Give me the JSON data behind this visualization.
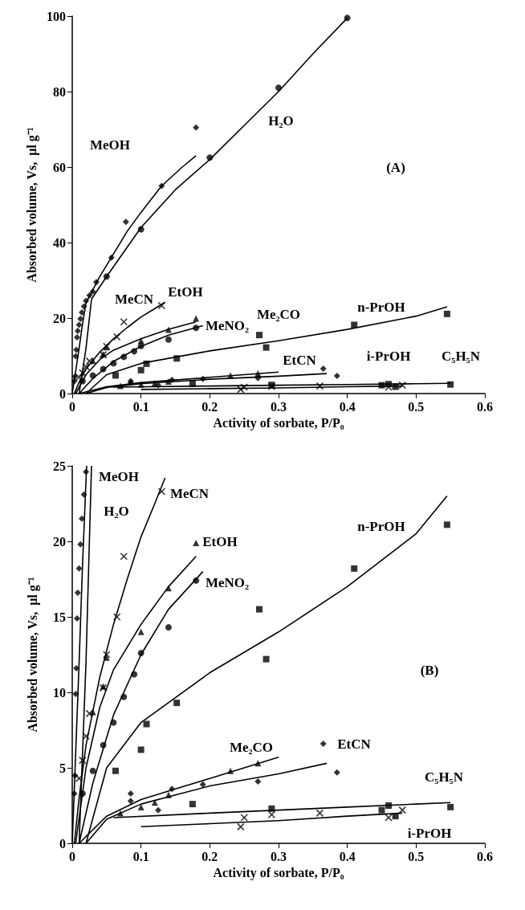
{
  "chart_data": [
    {
      "type": "scatter",
      "xlabel": "Activity of sorbate, P/P₀",
      "ylabel": "Absorbed volume, Vs,  μl g⁻¹",
      "xlim": [
        0,
        0.6
      ],
      "xticks": [
        0,
        0.1,
        0.2,
        0.3,
        0.4,
        0.5,
        0.6
      ],
      "ylim": [
        0,
        100
      ],
      "yticks": [
        0,
        20,
        40,
        60,
        80,
        100
      ],
      "series": [
        {
          "marker": "diamond",
          "color": "#000000",
          "x": [
            0.003,
            0.004,
            0.005,
            0.006,
            0.007,
            0.008,
            0.01,
            0.012,
            0.014,
            0.017,
            0.02,
            0.025,
            0.03,
            0.035,
            0.057,
            0.078,
            0.13,
            0.18
          ],
          "values": [
            3.3,
            4.5,
            9.9,
            11.6,
            14.9,
            16.6,
            18.2,
            19.8,
            21.5,
            23.1,
            24.6,
            26,
            27,
            29.5,
            36,
            45.5,
            55,
            70.5
          ]
        },
        {
          "type": "line",
          "marker": "none",
          "color": "#000000",
          "x": [
            0,
            0.005,
            0.01,
            0.015,
            0.02,
            0.04,
            0.06,
            0.08,
            0.1,
            0.13,
            0.16,
            0.18
          ],
          "values": [
            0,
            6,
            12,
            18.5,
            24,
            31,
            37,
            43,
            48,
            55,
            60,
            63
          ]
        },
        {
          "marker": "circle",
          "color": "#000000",
          "x": [
            0.05,
            0.1,
            0.2,
            0.3,
            0.4
          ],
          "values": [
            31,
            43.5,
            62.5,
            81,
            99.5
          ]
        },
        {
          "type": "line",
          "marker": "none",
          "color": "#000000",
          "x": [
            0.01,
            0.02,
            0.028,
            0.05,
            0.1,
            0.15,
            0.2,
            0.25,
            0.3,
            0.35,
            0.4
          ],
          "values": [
            0,
            12,
            25,
            31,
            44,
            54,
            62,
            71,
            80,
            90,
            99.5
          ]
        },
        {
          "marker": "cross",
          "color": "#000000",
          "x": [
            0.01,
            0.015,
            0.02,
            0.025,
            0.045,
            0.05,
            0.065,
            0.075,
            0.13
          ],
          "values": [
            4.3,
            5.5,
            7.1,
            8.6,
            10.3,
            12.5,
            15,
            19,
            23.3
          ]
        },
        {
          "type": "line",
          "marker": "none",
          "color": "#000000",
          "x": [
            0.003,
            0.01,
            0.02,
            0.04,
            0.06,
            0.08,
            0.1,
            0.12,
            0.135
          ],
          "values": [
            0,
            3,
            6.5,
            11,
            14.5,
            17.5,
            20.3,
            22.5,
            24.2
          ]
        },
        {
          "marker": "triangle",
          "color": "#000000",
          "x": [
            0.03,
            0.045,
            0.05,
            0.1,
            0.14,
            0.18
          ],
          "values": [
            8.7,
            10.4,
            12.3,
            14,
            16.9,
            19.9
          ]
        },
        {
          "type": "line",
          "marker": "none",
          "color": "#000000",
          "x": [
            0.005,
            0.02,
            0.04,
            0.06,
            0.1,
            0.14,
            0.18
          ],
          "values": [
            0,
            5,
            9,
            11.5,
            14.5,
            17,
            19
          ]
        },
        {
          "marker": "circle",
          "color": "#000000",
          "x": [
            0.015,
            0.03,
            0.045,
            0.06,
            0.075,
            0.09,
            0.1,
            0.14,
            0.18
          ],
          "values": [
            3.3,
            4.8,
            6.5,
            8,
            9.7,
            11.2,
            12.6,
            14.3,
            17.4
          ]
        },
        {
          "type": "line",
          "marker": "none",
          "color": "#000000",
          "x": [
            0.01,
            0.03,
            0.06,
            0.1,
            0.14,
            0.19
          ],
          "values": [
            0,
            4,
            8.5,
            12.5,
            15.5,
            18
          ]
        },
        {
          "marker": "square",
          "color": "#000000",
          "x": [
            0.063,
            0.1,
            0.108,
            0.152,
            0.272,
            0.282,
            0.41,
            0.545
          ],
          "values": [
            4.8,
            6.2,
            7.9,
            9.3,
            15.5,
            12.2,
            18.2,
            21.1
          ]
        },
        {
          "type": "line",
          "marker": "none",
          "color": "#000000",
          "x": [
            0.02,
            0.05,
            0.1,
            0.2,
            0.3,
            0.4,
            0.5,
            0.545
          ],
          "values": [
            0,
            5,
            8,
            11.3,
            14,
            17,
            20.5,
            23
          ]
        },
        {
          "marker": "triangle",
          "color": "#000000",
          "x": [
            0.07,
            0.1,
            0.12,
            0.14,
            0.23,
            0.27
          ],
          "values": [
            2,
            2.4,
            2.7,
            3.2,
            4.8,
            5.3
          ]
        },
        {
          "type": "line",
          "marker": "none",
          "color": "#000000",
          "x": [
            0.01,
            0.05,
            0.1,
            0.15,
            0.2,
            0.25,
            0.3
          ],
          "values": [
            0,
            1.8,
            2.9,
            3.6,
            4.3,
            5,
            5.7
          ]
        },
        {
          "marker": "diamond",
          "color": "#000000",
          "x": [
            0.085,
            0.085,
            0.125,
            0.145,
            0.19,
            0.27,
            0.365,
            0.385
          ],
          "values": [
            2.8,
            3.3,
            2.2,
            3.6,
            3.9,
            4.1,
            6.6,
            4.7
          ]
        },
        {
          "type": "line",
          "marker": "none",
          "color": "#000000",
          "x": [
            0.02,
            0.05,
            0.1,
            0.15,
            0.2,
            0.3,
            0.37
          ],
          "values": [
            0,
            1.6,
            2.6,
            3.2,
            3.8,
            4.6,
            5.3
          ]
        },
        {
          "marker": "square",
          "color": "#000000",
          "x": [
            0.175,
            0.29,
            0.45,
            0.46,
            0.47,
            0.55
          ],
          "values": [
            2.6,
            2.3,
            2.2,
            2.5,
            1.8,
            2.4
          ]
        },
        {
          "type": "line",
          "marker": "none",
          "color": "#000000",
          "x": [
            0.06,
            0.2,
            0.3,
            0.4,
            0.5,
            0.55
          ],
          "values": [
            1.7,
            2,
            2.2,
            2.4,
            2.6,
            2.7
          ]
        },
        {
          "marker": "cross",
          "color": "#000000",
          "x": [
            0.245,
            0.25,
            0.29,
            0.36,
            0.46,
            0.48
          ],
          "values": [
            1.1,
            1.7,
            1.9,
            2,
            1.7,
            2.2
          ]
        },
        {
          "type": "line",
          "marker": "none",
          "color": "#000000",
          "x": [
            0.1,
            0.2,
            0.3,
            0.4,
            0.48
          ],
          "values": [
            1.1,
            1.3,
            1.5,
            1.8,
            2
          ]
        }
      ],
      "annotations": [
        "(A)",
        "MeOH",
        "H₂O",
        "MeCN",
        "EtOH",
        "MeNO₂",
        "Me₂CO",
        "n-PrOH",
        "EtCN",
        "i-PrOH",
        "C₅H₅N"
      ]
    },
    {
      "type": "scatter",
      "xlabel": "Activity of sorbate, P/P₀",
      "ylabel": "Absorbed volume, Vs,  μl g⁻¹",
      "xlim": [
        0,
        0.6
      ],
      "xticks": [
        0,
        0.1,
        0.2,
        0.3,
        0.4,
        0.5,
        0.6
      ],
      "ylim": [
        0,
        25
      ],
      "yticks": [
        0,
        5,
        10,
        15,
        20,
        25
      ],
      "series": [
        {
          "marker": "diamond",
          "color": "#000000",
          "x": [
            0.003,
            0.004,
            0.005,
            0.006,
            0.007,
            0.008,
            0.01,
            0.012,
            0.014,
            0.017,
            0.02
          ],
          "values": [
            3.3,
            4.5,
            9.9,
            11.6,
            14.9,
            16.6,
            18.2,
            19.8,
            21.5,
            23.1,
            24.6
          ]
        },
        {
          "type": "line",
          "marker": "none",
          "color": "#000000",
          "x": [
            0,
            0.005,
            0.01,
            0.015,
            0.02,
            0.021
          ],
          "values": [
            0,
            6,
            12,
            18.5,
            24,
            25
          ]
        },
        {
          "type": "line",
          "marker": "none",
          "color": "#000000",
          "x": [
            0.01,
            0.02,
            0.028
          ],
          "values": [
            0,
            12,
            25
          ]
        },
        {
          "marker": "cross",
          "color": "#000000",
          "x": [
            0.01,
            0.015,
            0.02,
            0.025,
            0.045,
            0.05,
            0.065,
            0.075,
            0.13
          ],
          "values": [
            4.3,
            5.5,
            7.1,
            8.6,
            10.3,
            12.5,
            15,
            19,
            23.3
          ]
        },
        {
          "type": "line",
          "marker": "none",
          "color": "#000000",
          "x": [
            0.003,
            0.01,
            0.02,
            0.04,
            0.06,
            0.08,
            0.1,
            0.12,
            0.135
          ],
          "values": [
            0,
            3,
            6.5,
            11,
            14.5,
            17.5,
            20.3,
            22.5,
            24.2
          ]
        },
        {
          "marker": "triangle",
          "color": "#000000",
          "x": [
            0.03,
            0.045,
            0.05,
            0.1,
            0.14,
            0.18
          ],
          "values": [
            8.7,
            10.4,
            12.3,
            14,
            16.9,
            19.9
          ]
        },
        {
          "type": "line",
          "marker": "none",
          "color": "#000000",
          "x": [
            0.005,
            0.02,
            0.04,
            0.06,
            0.1,
            0.14,
            0.18
          ],
          "values": [
            0,
            5,
            9,
            11.5,
            14.5,
            17,
            19
          ]
        },
        {
          "marker": "circle",
          "color": "#000000",
          "x": [
            0.015,
            0.03,
            0.045,
            0.06,
            0.075,
            0.09,
            0.1,
            0.14,
            0.18
          ],
          "values": [
            3.3,
            4.8,
            6.5,
            8,
            9.7,
            11.2,
            12.6,
            14.3,
            17.4
          ]
        },
        {
          "type": "line",
          "marker": "none",
          "color": "#000000",
          "x": [
            0.01,
            0.03,
            0.06,
            0.1,
            0.14,
            0.19
          ],
          "values": [
            0,
            4,
            8.5,
            12.5,
            15.5,
            18
          ]
        },
        {
          "marker": "square",
          "color": "#000000",
          "x": [
            0.063,
            0.1,
            0.108,
            0.152,
            0.272,
            0.282,
            0.41,
            0.545
          ],
          "values": [
            4.8,
            6.2,
            7.9,
            9.3,
            15.5,
            12.2,
            18.2,
            21.1
          ]
        },
        {
          "type": "line",
          "marker": "none",
          "color": "#000000",
          "x": [
            0.02,
            0.05,
            0.1,
            0.2,
            0.3,
            0.4,
            0.5,
            0.545
          ],
          "values": [
            0,
            5,
            8,
            11.3,
            14,
            17,
            20.5,
            23
          ]
        },
        {
          "marker": "triangle",
          "color": "#000000",
          "x": [
            0.07,
            0.1,
            0.12,
            0.14,
            0.23,
            0.27
          ],
          "values": [
            2,
            2.4,
            2.7,
            3.2,
            4.8,
            5.3
          ]
        },
        {
          "type": "line",
          "marker": "none",
          "color": "#000000",
          "x": [
            0.01,
            0.05,
            0.1,
            0.15,
            0.2,
            0.25,
            0.3
          ],
          "values": [
            0,
            1.8,
            2.9,
            3.6,
            4.3,
            5,
            5.7
          ]
        },
        {
          "marker": "diamond",
          "color": "#000000",
          "x": [
            0.085,
            0.085,
            0.125,
            0.145,
            0.19,
            0.27,
            0.365,
            0.385
          ],
          "values": [
            2.8,
            3.3,
            2.2,
            3.6,
            3.9,
            4.1,
            6.6,
            4.7
          ]
        },
        {
          "type": "line",
          "marker": "none",
          "color": "#000000",
          "x": [
            0.02,
            0.05,
            0.1,
            0.15,
            0.2,
            0.3,
            0.37
          ],
          "values": [
            0,
            1.6,
            2.6,
            3.2,
            3.8,
            4.6,
            5.3
          ]
        },
        {
          "marker": "square",
          "color": "#000000",
          "x": [
            0.175,
            0.29,
            0.45,
            0.46,
            0.47,
            0.55
          ],
          "values": [
            2.6,
            2.3,
            2.2,
            2.5,
            1.8,
            2.4
          ]
        },
        {
          "type": "line",
          "marker": "none",
          "color": "#000000",
          "x": [
            0.06,
            0.2,
            0.3,
            0.4,
            0.5,
            0.55
          ],
          "values": [
            1.7,
            2,
            2.2,
            2.4,
            2.6,
            2.7
          ]
        },
        {
          "marker": "cross",
          "color": "#000000",
          "x": [
            0.245,
            0.25,
            0.29,
            0.36,
            0.46,
            0.48
          ],
          "values": [
            1.1,
            1.7,
            1.9,
            2,
            1.7,
            2.2
          ]
        },
        {
          "type": "line",
          "marker": "none",
          "color": "#000000",
          "x": [
            0.1,
            0.2,
            0.3,
            0.4,
            0.48
          ],
          "values": [
            1.1,
            1.3,
            1.5,
            1.8,
            2
          ]
        }
      ],
      "annotations": [
        "(B)",
        "MeOH",
        "H₂O",
        "MeCN",
        "EtOH",
        "MeNO₂",
        "n-PrOH",
        "Me₂CO",
        "EtCN",
        "C₅H₅N",
        "i-PrOH"
      ]
    }
  ]
}
